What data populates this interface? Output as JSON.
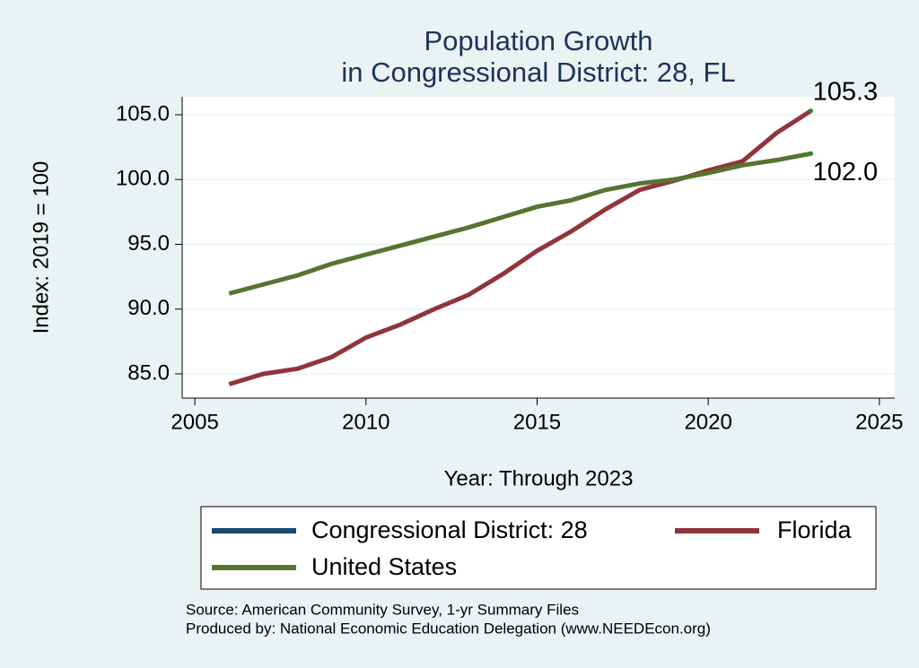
{
  "chart_data": {
    "type": "line",
    "title": [
      "Population Growth",
      "in Congressional District: 28, FL"
    ],
    "x_label": "Year: Through 2023",
    "y_label": "Index: 2019 = 100",
    "x": [
      2006,
      2007,
      2008,
      2009,
      2010,
      2011,
      2012,
      2013,
      2014,
      2015,
      2016,
      2017,
      2018,
      2019,
      2020,
      2021,
      2022,
      2023
    ],
    "series": [
      {
        "name": "Congressional District: 28",
        "color": "#1a476f",
        "values": [
          null,
          null,
          null,
          null,
          null,
          null,
          null,
          null,
          null,
          null,
          null,
          null,
          null,
          null,
          null,
          null,
          null,
          null
        ]
      },
      {
        "name": "Florida",
        "color": "#90353b",
        "values": [
          84.2,
          85.0,
          85.4,
          86.3,
          87.8,
          88.8,
          90.0,
          91.1,
          92.7,
          94.5,
          96.0,
          97.7,
          99.2,
          99.9,
          100.7,
          101.4,
          103.6,
          105.3
        ],
        "value_labels": [
          null,
          null,
          null,
          null,
          null,
          null,
          null,
          null,
          null,
          null,
          null,
          null,
          null,
          null,
          null,
          null,
          null,
          "105.3"
        ]
      },
      {
        "name": "United States",
        "color": "#55752f",
        "values": [
          91.2,
          91.9,
          92.6,
          93.5,
          94.2,
          94.9,
          95.6,
          96.3,
          97.1,
          97.9,
          98.4,
          99.2,
          99.7,
          100.0,
          100.5,
          101.1,
          101.5,
          102.0
        ],
        "value_labels": [
          null,
          null,
          null,
          null,
          null,
          null,
          null,
          null,
          null,
          null,
          null,
          null,
          null,
          null,
          null,
          null,
          null,
          "102.0"
        ]
      }
    ],
    "xlim": [
      2004.63,
      2025.45
    ],
    "xticks": [
      2005,
      2010,
      2015,
      2020,
      2025
    ],
    "ylim": [
      83.13,
      106.38
    ],
    "yticks": [
      {
        "value": 85,
        "label": "85.0"
      },
      {
        "value": 90,
        "label": "90.0"
      },
      {
        "value": 95,
        "label": "95.0"
      },
      {
        "value": 100,
        "label": "100.0"
      },
      {
        "value": 105,
        "label": "105.0"
      }
    ],
    "grid": true,
    "notes": [
      "Source: American Community Survey, 1-yr Summary Files",
      "Produced by: National Economic Education Delegation (www.NEEDEcon.org)"
    ]
  }
}
